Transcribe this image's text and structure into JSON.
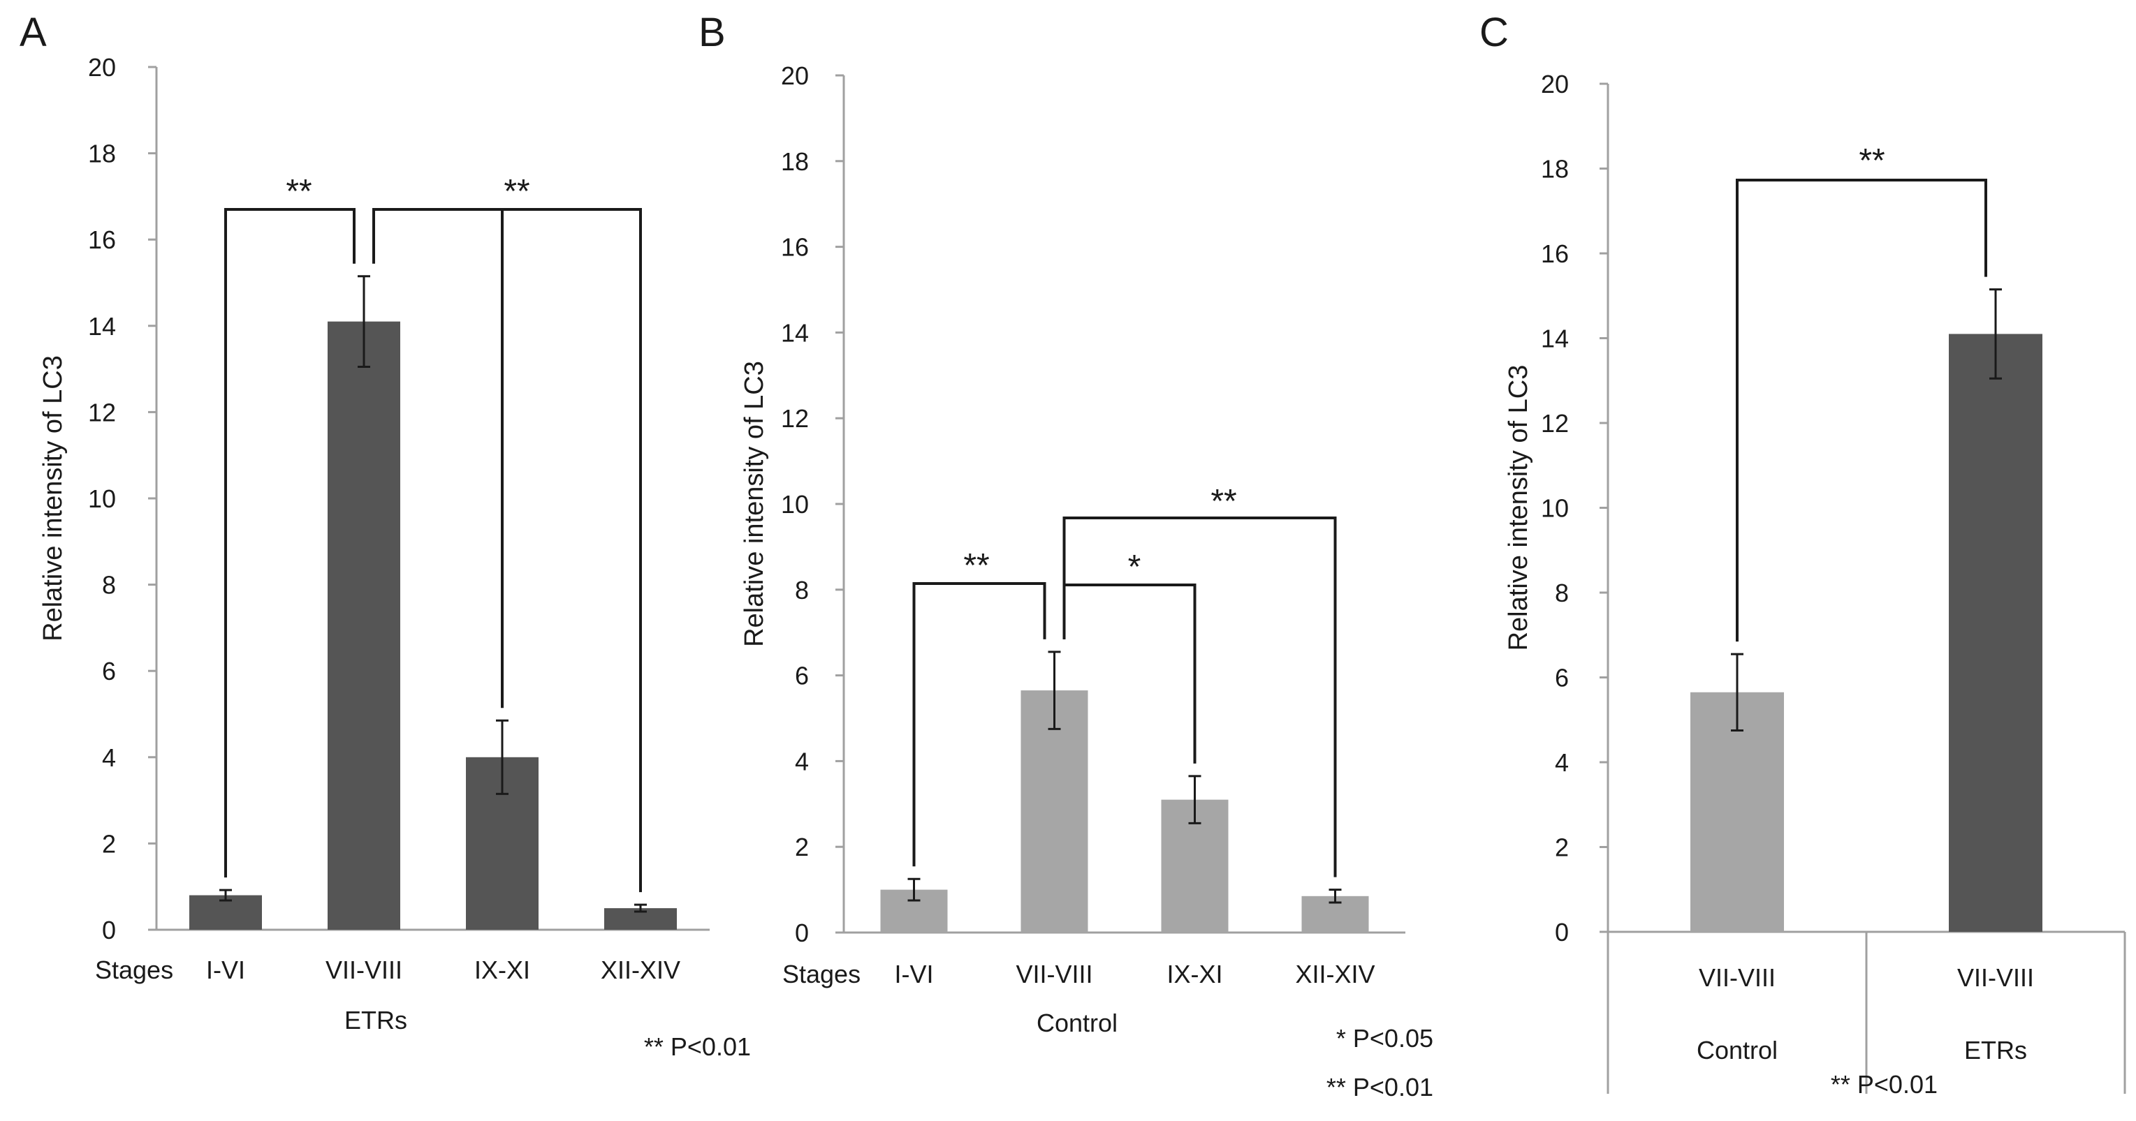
{
  "chart_data": [
    {
      "type": "bar",
      "panel": "A",
      "ylabel": "Relative intensity  of  LC3",
      "stages_label": "Stages",
      "group_label": "ETRs",
      "categories": [
        "I-VI",
        "VII-VIII",
        "IX-XI",
        "XII-XIV"
      ],
      "values": [
        0.8,
        14.1,
        4.0,
        0.5
      ],
      "errors": [
        0.12,
        1.05,
        0.85,
        0.08
      ],
      "ylim": [
        0,
        20
      ],
      "ytick_step": 2,
      "bar_color": "#555555",
      "significance": [
        {
          "from": 0,
          "to": 1,
          "label": "**"
        },
        {
          "from": 1,
          "to": 3,
          "drop_to": 2,
          "label": "**"
        }
      ],
      "notes": [
        "** P<0.01"
      ]
    },
    {
      "type": "bar",
      "panel": "B",
      "ylabel": "Relative intensity of LC3",
      "stages_label": "Stages",
      "group_label": "Control",
      "categories": [
        "I-VI",
        "VII-VIII",
        "IX-XI",
        "XII-XIV"
      ],
      "values": [
        1.0,
        5.65,
        3.1,
        0.85
      ],
      "errors": [
        0.25,
        0.9,
        0.55,
        0.15
      ],
      "ylim": [
        0,
        20
      ],
      "ytick_step": 2,
      "bar_color": "#a6a6a6",
      "significance": [
        {
          "from": 0,
          "to": 1,
          "label": "**"
        },
        {
          "from": 1,
          "to": 2,
          "label": "*"
        },
        {
          "from": 1,
          "to": 3,
          "label": "**"
        }
      ],
      "notes": [
        "* P<0.05",
        "** P<0.01"
      ]
    },
    {
      "type": "bar",
      "panel": "C",
      "ylabel": "Relative intensity  of LC3",
      "categories": [
        "VII-VIII",
        "VII-VIII"
      ],
      "groups": [
        "Control",
        "ETRs"
      ],
      "values": [
        5.65,
        14.1
      ],
      "errors": [
        0.9,
        1.05
      ],
      "ylim": [
        0,
        20
      ],
      "ytick_step": 2,
      "bar_colors": [
        "#a6a6a6",
        "#555555"
      ],
      "significance": [
        {
          "from": 0,
          "to": 1,
          "label": "**"
        }
      ],
      "notes": [
        "** P<0.01"
      ]
    }
  ]
}
